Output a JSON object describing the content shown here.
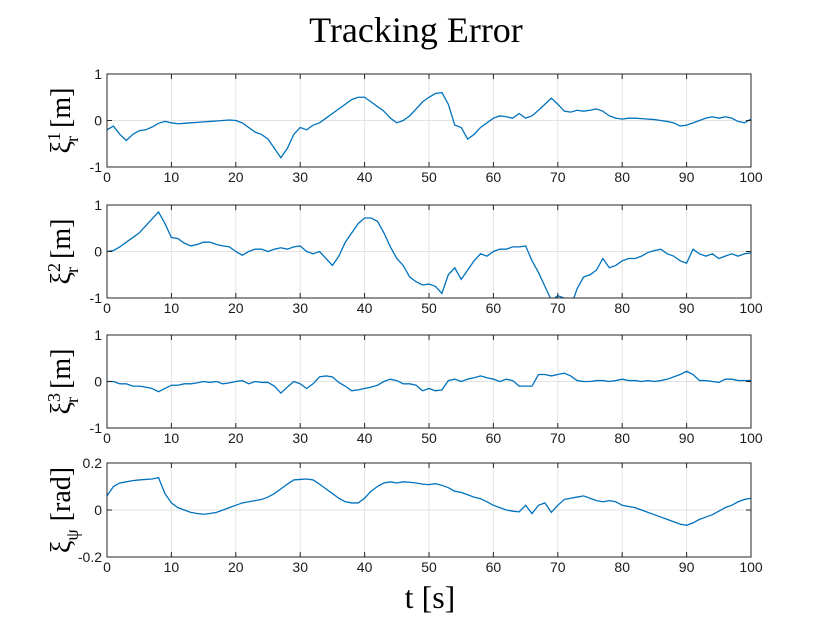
{
  "figure": {
    "title": "Tracking Error",
    "xlabel": "t [s]"
  },
  "chart_data": [
    {
      "type": "line",
      "ylabel": "ξr1 [m]",
      "ylabel_parts": {
        "sym": "ξ",
        "sup": "1",
        "sub": "r",
        "unit": "[m]"
      },
      "xlim": [
        0,
        100
      ],
      "ylim": [
        -1,
        1
      ],
      "xticks": [
        "0",
        "10",
        "20",
        "30",
        "40",
        "50",
        "60",
        "70",
        "80",
        "90",
        "100"
      ],
      "yticks": [
        "-1",
        "0",
        "1"
      ],
      "ytick_values": [
        -1,
        0,
        1
      ],
      "grid": true,
      "series": [
        {
          "color": "#0072bd",
          "x": [
            0,
            1,
            2,
            3,
            4,
            5,
            6,
            7,
            8,
            9,
            10,
            11,
            12,
            13,
            14,
            15,
            16,
            17,
            18,
            19,
            20,
            21,
            22,
            23,
            24,
            25,
            26,
            27,
            28,
            29,
            30,
            31,
            32,
            33,
            34,
            35,
            36,
            37,
            38,
            39,
            40,
            41,
            42,
            43,
            44,
            45,
            46,
            47,
            48,
            49,
            50,
            51,
            52,
            53,
            54,
            55,
            56,
            57,
            58,
            59,
            60,
            61,
            62,
            63,
            64,
            65,
            66,
            67,
            68,
            69,
            70,
            71,
            72,
            73,
            74,
            75,
            76,
            77,
            78,
            79,
            80,
            81,
            82,
            83,
            84,
            85,
            86,
            87,
            88,
            89,
            90,
            91,
            92,
            93,
            94,
            95,
            96,
            97,
            98,
            99,
            100
          ],
          "y": [
            -0.2,
            -0.12,
            -0.3,
            -0.43,
            -0.3,
            -0.22,
            -0.2,
            -0.14,
            -0.06,
            -0.02,
            -0.05,
            -0.07,
            -0.06,
            -0.05,
            -0.04,
            -0.03,
            -0.02,
            -0.01,
            0.0,
            0.01,
            0.0,
            -0.05,
            -0.15,
            -0.25,
            -0.3,
            -0.4,
            -0.6,
            -0.8,
            -0.6,
            -0.3,
            -0.15,
            -0.2,
            -0.1,
            -0.05,
            0.05,
            0.15,
            0.25,
            0.35,
            0.45,
            0.5,
            0.5,
            0.4,
            0.3,
            0.2,
            0.05,
            -0.05,
            0.0,
            0.1,
            0.25,
            0.4,
            0.5,
            0.58,
            0.6,
            0.35,
            -0.1,
            -0.15,
            -0.4,
            -0.3,
            -0.15,
            -0.05,
            0.05,
            0.1,
            0.08,
            0.05,
            0.15,
            0.05,
            0.1,
            0.22,
            0.35,
            0.48,
            0.35,
            0.2,
            0.18,
            0.22,
            0.2,
            0.22,
            0.25,
            0.2,
            0.1,
            0.05,
            0.03,
            0.05,
            0.05,
            0.04,
            0.03,
            0.02,
            0.0,
            -0.02,
            -0.05,
            -0.12,
            -0.1,
            -0.05,
            0.0,
            0.05,
            0.08,
            0.05,
            0.08,
            0.05,
            -0.02,
            -0.05,
            0.03
          ]
        }
      ]
    },
    {
      "type": "line",
      "ylabel": "ξr2 [m]",
      "ylabel_parts": {
        "sym": "ξ",
        "sup": "2",
        "sub": "r",
        "unit": "[m]"
      },
      "xlim": [
        0,
        100
      ],
      "ylim": [
        -1,
        1
      ],
      "xticks": [
        "0",
        "10",
        "20",
        "30",
        "40",
        "50",
        "60",
        "70",
        "80",
        "90",
        "100"
      ],
      "yticks": [
        "-1",
        "0",
        "1"
      ],
      "ytick_values": [
        -1,
        0,
        1
      ],
      "grid": true,
      "series": [
        {
          "color": "#0072bd",
          "x": [
            0,
            1,
            2,
            3,
            4,
            5,
            6,
            7,
            8,
            9,
            10,
            11,
            12,
            13,
            14,
            15,
            16,
            17,
            18,
            19,
            20,
            21,
            22,
            23,
            24,
            25,
            26,
            27,
            28,
            29,
            30,
            31,
            32,
            33,
            34,
            35,
            36,
            37,
            38,
            39,
            40,
            41,
            42,
            43,
            44,
            45,
            46,
            47,
            48,
            49,
            50,
            51,
            52,
            53,
            54,
            55,
            56,
            57,
            58,
            59,
            60,
            61,
            62,
            63,
            64,
            65,
            66,
            67,
            68,
            69,
            70,
            71,
            72,
            73,
            74,
            75,
            76,
            77,
            78,
            79,
            80,
            81,
            82,
            83,
            84,
            85,
            86,
            87,
            88,
            89,
            90,
            91,
            92,
            93,
            94,
            95,
            96,
            97,
            98,
            99,
            100
          ],
          "y": [
            0.0,
            0.02,
            0.1,
            0.2,
            0.3,
            0.4,
            0.55,
            0.7,
            0.85,
            0.6,
            0.3,
            0.28,
            0.18,
            0.12,
            0.15,
            0.2,
            0.2,
            0.15,
            0.12,
            0.1,
            0.0,
            -0.08,
            0.0,
            0.05,
            0.05,
            0.0,
            0.05,
            0.08,
            0.05,
            0.1,
            0.12,
            0.0,
            -0.05,
            0.0,
            -0.15,
            -0.3,
            -0.1,
            0.2,
            0.4,
            0.6,
            0.72,
            0.72,
            0.65,
            0.4,
            0.1,
            -0.15,
            -0.3,
            -0.55,
            -0.65,
            -0.72,
            -0.7,
            -0.75,
            -0.9,
            -0.5,
            -0.35,
            -0.6,
            -0.4,
            -0.2,
            -0.05,
            -0.1,
            0.0,
            0.05,
            0.05,
            0.1,
            0.1,
            0.12,
            -0.2,
            -0.45,
            -0.75,
            -1.05,
            -0.95,
            -1.0,
            -1.2,
            -0.8,
            -0.55,
            -0.5,
            -0.4,
            -0.15,
            -0.35,
            -0.3,
            -0.2,
            -0.15,
            -0.15,
            -0.1,
            -0.02,
            0.02,
            0.05,
            -0.05,
            -0.1,
            -0.2,
            -0.25,
            0.05,
            -0.05,
            -0.1,
            -0.05,
            -0.15,
            -0.1,
            -0.05,
            -0.1,
            -0.05,
            -0.03
          ]
        }
      ]
    },
    {
      "type": "line",
      "ylabel": "ξr3 [m]",
      "ylabel_parts": {
        "sym": "ξ",
        "sup": "3",
        "sub": "r",
        "unit": "[m]"
      },
      "xlim": [
        0,
        100
      ],
      "ylim": [
        -1,
        1
      ],
      "xticks": [
        "0",
        "10",
        "20",
        "30",
        "40",
        "50",
        "60",
        "70",
        "80",
        "90",
        "100"
      ],
      "yticks": [
        "-1",
        "0",
        "1"
      ],
      "ytick_values": [
        -1,
        0,
        1
      ],
      "grid": true,
      "series": [
        {
          "color": "#0072bd",
          "x": [
            0,
            1,
            2,
            3,
            4,
            5,
            6,
            7,
            8,
            9,
            10,
            11,
            12,
            13,
            14,
            15,
            16,
            17,
            18,
            19,
            20,
            21,
            22,
            23,
            24,
            25,
            26,
            27,
            28,
            29,
            30,
            31,
            32,
            33,
            34,
            35,
            36,
            37,
            38,
            39,
            40,
            41,
            42,
            43,
            44,
            45,
            46,
            47,
            48,
            49,
            50,
            51,
            52,
            53,
            54,
            55,
            56,
            57,
            58,
            59,
            60,
            61,
            62,
            63,
            64,
            65,
            66,
            67,
            68,
            69,
            70,
            71,
            72,
            73,
            74,
            75,
            76,
            77,
            78,
            79,
            80,
            81,
            82,
            83,
            84,
            85,
            86,
            87,
            88,
            89,
            90,
            91,
            92,
            93,
            94,
            95,
            96,
            97,
            98,
            99,
            100
          ],
          "y": [
            0.0,
            0.0,
            -0.05,
            -0.05,
            -0.1,
            -0.1,
            -0.12,
            -0.15,
            -0.22,
            -0.15,
            -0.08,
            -0.08,
            -0.05,
            -0.05,
            -0.03,
            0.0,
            -0.02,
            0.0,
            -0.05,
            -0.03,
            0.0,
            0.02,
            -0.05,
            0.0,
            -0.02,
            -0.02,
            -0.1,
            -0.25,
            -0.12,
            0.0,
            -0.05,
            -0.15,
            -0.05,
            0.1,
            0.12,
            0.1,
            -0.02,
            -0.1,
            -0.2,
            -0.18,
            -0.15,
            -0.12,
            -0.08,
            0.0,
            0.05,
            0.02,
            -0.05,
            -0.05,
            -0.08,
            -0.2,
            -0.15,
            -0.2,
            -0.18,
            0.02,
            0.05,
            0.0,
            0.05,
            0.08,
            0.12,
            0.08,
            0.05,
            0.0,
            0.05,
            0.02,
            -0.1,
            -0.1,
            -0.1,
            0.15,
            0.15,
            0.12,
            0.15,
            0.18,
            0.12,
            0.02,
            0.0,
            0.0,
            0.02,
            0.02,
            0.0,
            0.02,
            0.05,
            0.02,
            0.02,
            0.0,
            0.02,
            0.0,
            0.02,
            0.05,
            0.1,
            0.15,
            0.22,
            0.15,
            0.02,
            0.02,
            0.0,
            -0.02,
            0.05,
            0.05,
            0.02,
            0.02,
            0.02
          ]
        }
      ]
    },
    {
      "type": "line",
      "ylabel": "ξψ [rad]",
      "ylabel_parts": {
        "sym": "ξ",
        "sup": "",
        "sub": "ψ",
        "unit": "[rad]"
      },
      "xlim": [
        0,
        100
      ],
      "ylim": [
        -0.2,
        0.2
      ],
      "xticks": [
        "0",
        "10",
        "20",
        "30",
        "40",
        "50",
        "60",
        "70",
        "80",
        "90",
        "100"
      ],
      "yticks": [
        "-0.2",
        "0",
        "0.2"
      ],
      "ytick_values": [
        -0.2,
        0,
        0.2
      ],
      "grid": true,
      "series": [
        {
          "color": "#0072bd",
          "x": [
            0,
            1,
            2,
            3,
            4,
            5,
            6,
            7,
            8,
            9,
            10,
            11,
            12,
            13,
            14,
            15,
            16,
            17,
            18,
            19,
            20,
            21,
            22,
            23,
            24,
            25,
            26,
            27,
            28,
            29,
            30,
            31,
            32,
            33,
            34,
            35,
            36,
            37,
            38,
            39,
            40,
            41,
            42,
            43,
            44,
            45,
            46,
            47,
            48,
            49,
            50,
            51,
            52,
            53,
            54,
            55,
            56,
            57,
            58,
            59,
            60,
            61,
            62,
            63,
            64,
            65,
            66,
            67,
            68,
            69,
            70,
            71,
            72,
            73,
            74,
            75,
            76,
            77,
            78,
            79,
            80,
            81,
            82,
            83,
            84,
            85,
            86,
            87,
            88,
            89,
            90,
            91,
            92,
            93,
            94,
            95,
            96,
            97,
            98,
            99,
            100
          ],
          "y": [
            0.06,
            0.1,
            0.115,
            0.12,
            0.125,
            0.128,
            0.13,
            0.132,
            0.138,
            0.07,
            0.03,
            0.01,
            0.0,
            -0.01,
            -0.015,
            -0.018,
            -0.015,
            -0.01,
            0.0,
            0.01,
            0.02,
            0.03,
            0.035,
            0.04,
            0.045,
            0.055,
            0.07,
            0.09,
            0.11,
            0.128,
            0.13,
            0.132,
            0.128,
            0.11,
            0.09,
            0.07,
            0.05,
            0.035,
            0.03,
            0.03,
            0.05,
            0.08,
            0.1,
            0.115,
            0.12,
            0.115,
            0.12,
            0.118,
            0.115,
            0.11,
            0.108,
            0.112,
            0.105,
            0.095,
            0.08,
            0.075,
            0.065,
            0.055,
            0.048,
            0.035,
            0.02,
            0.01,
            0.0,
            -0.005,
            -0.008,
            0.02,
            -0.015,
            0.02,
            0.03,
            -0.01,
            0.02,
            0.045,
            0.05,
            0.055,
            0.06,
            0.05,
            0.04,
            0.035,
            0.04,
            0.035,
            0.02,
            0.015,
            0.01,
            0.0,
            -0.01,
            -0.02,
            -0.03,
            -0.04,
            -0.05,
            -0.06,
            -0.065,
            -0.055,
            -0.04,
            -0.03,
            -0.02,
            -0.005,
            0.01,
            0.02,
            0.035,
            0.045,
            0.05
          ]
        }
      ]
    }
  ]
}
